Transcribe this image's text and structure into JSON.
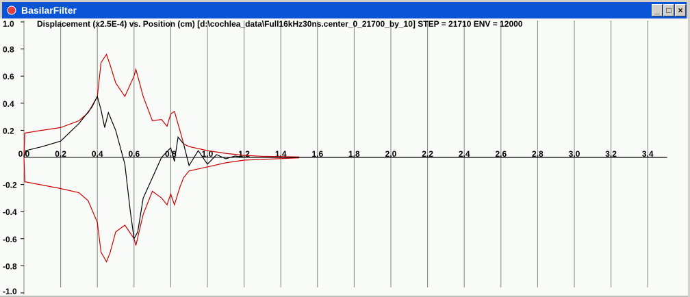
{
  "window": {
    "title": "BasilarFilter",
    "buttons": {
      "minimize": "_",
      "maximize": "□",
      "close": "×"
    }
  },
  "chart_data": {
    "type": "line",
    "title": "Displacement (x2.5E-4) vs. Position (cm) [d:\\cochlea_data\\Full16kHz30ns.center_0_21700_by_10] STEP = 21710 ENV = 12000",
    "xlim": [
      0,
      3.5
    ],
    "ylim": [
      -1.0,
      1.0
    ],
    "x_ticks": [
      "0.0",
      "0.2",
      "0.4",
      "0.6",
      "0.8",
      "1.0",
      "1.2",
      "1.4",
      "1.6",
      "1.8",
      "2.0",
      "2.2",
      "2.4",
      "2.6",
      "2.8",
      "3.0",
      "3.2",
      "3.4"
    ],
    "y_ticks": [
      "1.0",
      "0.8",
      "0.6",
      "0.4",
      "0.2",
      "-0.2",
      "-0.4",
      "-0.6",
      "-0.8",
      "-1.0"
    ],
    "grid": "vertical",
    "colors": {
      "envelope": "#cc0000",
      "displacement": "#000000",
      "grid": "#808080",
      "background": "#f8fbf8"
    },
    "series": [
      {
        "role": "upper-envelope",
        "x": [
          0,
          0.005,
          0.1,
          0.2,
          0.3,
          0.35,
          0.4,
          0.42,
          0.45,
          0.47,
          0.5,
          0.55,
          0.6,
          0.61,
          0.65,
          0.7,
          0.75,
          0.78,
          0.8,
          0.82,
          0.85,
          0.87,
          0.9,
          1.0,
          1.1,
          1.2,
          1.3,
          1.5
        ],
        "y": [
          0,
          0.18,
          0.2,
          0.22,
          0.27,
          0.33,
          0.45,
          0.7,
          0.76,
          0.68,
          0.55,
          0.45,
          0.6,
          0.65,
          0.45,
          0.27,
          0.28,
          0.23,
          0.32,
          0.34,
          0.2,
          0.1,
          0.08,
          0.05,
          0.03,
          0.015,
          0.008,
          0.003
        ]
      },
      {
        "role": "lower-envelope",
        "x": [
          0,
          0.005,
          0.2,
          0.3,
          0.35,
          0.4,
          0.42,
          0.45,
          0.47,
          0.5,
          0.55,
          0.6,
          0.61,
          0.65,
          0.7,
          0.75,
          0.78,
          0.8,
          0.82,
          0.85,
          0.87,
          0.9,
          1.0,
          1.1,
          1.2,
          1.5
        ],
        "y": [
          0,
          -0.18,
          -0.23,
          -0.26,
          -0.32,
          -0.48,
          -0.7,
          -0.77,
          -0.7,
          -0.55,
          -0.5,
          -0.6,
          -0.65,
          -0.42,
          -0.25,
          -0.3,
          -0.35,
          -0.27,
          -0.35,
          -0.22,
          -0.15,
          -0.1,
          -0.07,
          -0.04,
          -0.02,
          -0.003
        ]
      },
      {
        "role": "displacement",
        "x": [
          0,
          0.01,
          0.1,
          0.2,
          0.3,
          0.37,
          0.4,
          0.42,
          0.44,
          0.46,
          0.5,
          0.55,
          0.58,
          0.6,
          0.62,
          0.65,
          0.7,
          0.75,
          0.8,
          0.82,
          0.84,
          0.87,
          0.9,
          0.95,
          1.0,
          1.05,
          1.1,
          1.15,
          1.2,
          3.5
        ],
        "y": [
          0,
          0.05,
          0.08,
          0.12,
          0.25,
          0.37,
          0.45,
          0.35,
          0.22,
          0.33,
          0.2,
          -0.05,
          -0.4,
          -0.6,
          -0.55,
          -0.3,
          -0.15,
          0,
          0.07,
          -0.03,
          0.15,
          0.1,
          -0.06,
          0.05,
          -0.05,
          0.02,
          -0.01,
          0.01,
          0,
          0
        ]
      }
    ]
  }
}
